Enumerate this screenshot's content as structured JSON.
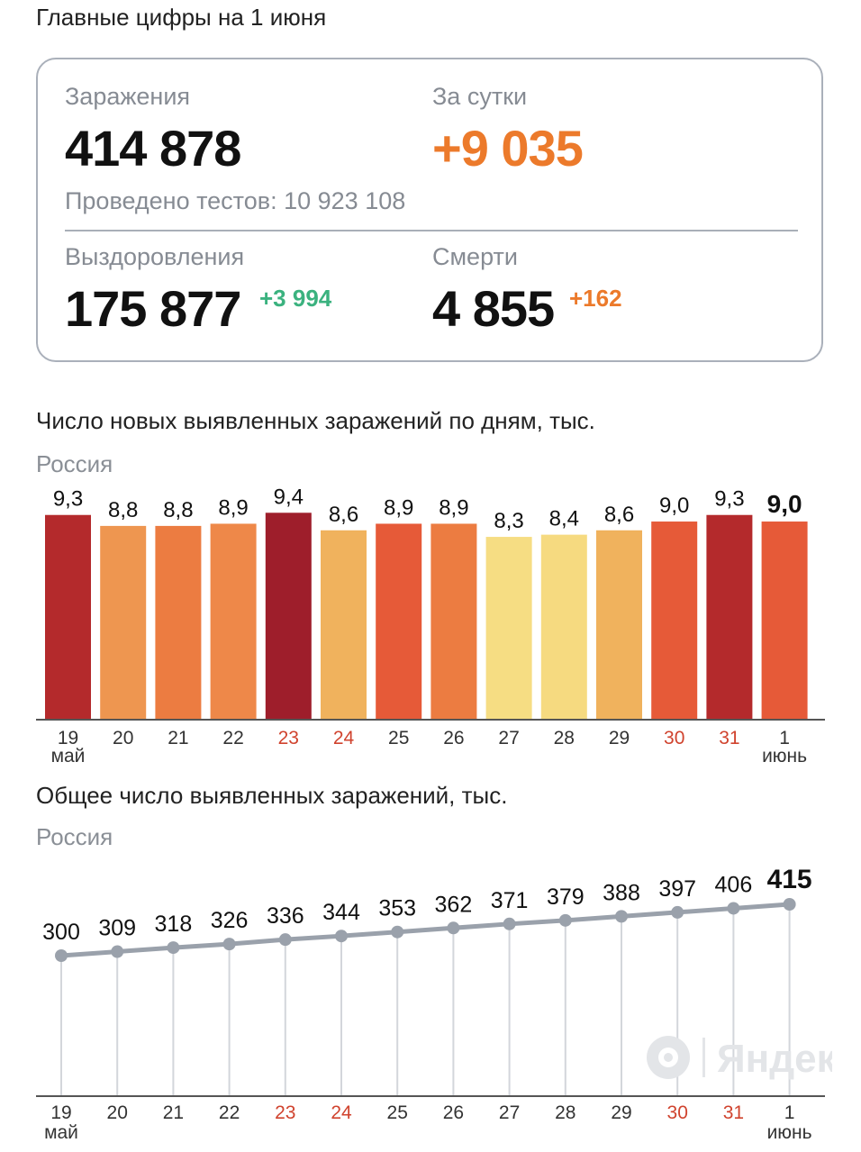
{
  "header": {
    "title": "Главные цифры на 1 июня"
  },
  "summary": {
    "infections_label": "Заражения",
    "infections_value": "414 878",
    "daily_label": "За сутки",
    "daily_value": "+9 035",
    "tests_text": "Проведено тестов: 10 923 108",
    "recoveries_label": "Выздоровления",
    "recoveries_value": "175 877",
    "recoveries_delta": "+3 994",
    "deaths_label": "Смерти",
    "deaths_value": "4 855",
    "deaths_delta": "+162"
  },
  "colors": {
    "green": "#3bb27f",
    "orange": "#ec7a2b",
    "weekend": "#d0432e",
    "line": "#9aa1ab"
  },
  "daily_chart": {
    "title": "Число новых выявленных заражений по дням, тыс.",
    "region": "Россия"
  },
  "total_chart": {
    "title": "Общее число выявленных заражений, тыс.",
    "region": "Россия"
  },
  "watermark": {
    "text": "Яндекс",
    "icon": "yandex-logo-icon"
  },
  "chart_data": [
    {
      "type": "bar",
      "title": "Число новых выявленных заражений по дням, тыс.",
      "subtitle": "Россия",
      "categories": [
        "19",
        "20",
        "21",
        "22",
        "23",
        "24",
        "25",
        "26",
        "27",
        "28",
        "29",
        "30",
        "31",
        "1"
      ],
      "month_labels": {
        "0": "май",
        "13": "июнь"
      },
      "weekend_indices": [
        4,
        5,
        11,
        12
      ],
      "values": [
        9.3,
        8.8,
        8.8,
        8.9,
        9.4,
        8.6,
        8.9,
        8.9,
        8.3,
        8.4,
        8.6,
        9.0,
        9.3,
        9.0
      ],
      "value_labels": [
        "9,3",
        "8,8",
        "8,8",
        "8,9",
        "9,4",
        "8,6",
        "8,9",
        "8,9",
        "8,3",
        "8,4",
        "8,6",
        "9,0",
        "9,3",
        "9,0"
      ],
      "bar_colors": [
        "#b42a2c",
        "#ee9650",
        "#ec7c41",
        "#ee8849",
        "#9e1e2b",
        "#f0b25d",
        "#e65a38",
        "#ec7c41",
        "#f6dd83",
        "#f6da80",
        "#f0b25d",
        "#e65a38",
        "#b42a2c",
        "#e65a38"
      ],
      "highlight_index": 13,
      "ylim": [
        0,
        9.7
      ],
      "xlabel": "",
      "ylabel": ""
    },
    {
      "type": "line",
      "title": "Общее число выявленных заражений, тыс.",
      "subtitle": "Россия",
      "categories": [
        "19",
        "20",
        "21",
        "22",
        "23",
        "24",
        "25",
        "26",
        "27",
        "28",
        "29",
        "30",
        "31",
        "1"
      ],
      "month_labels": {
        "0": "май",
        "13": "июнь"
      },
      "weekend_indices": [
        4,
        5,
        11,
        12
      ],
      "values": [
        300,
        309,
        318,
        326,
        336,
        344,
        353,
        362,
        371,
        379,
        388,
        397,
        406,
        415
      ],
      "value_labels": [
        "300",
        "309",
        "318",
        "326",
        "336",
        "344",
        "353",
        "362",
        "371",
        "379",
        "388",
        "397",
        "406",
        "415"
      ],
      "highlight_index": 13,
      "xlabel": "",
      "ylabel": ""
    }
  ]
}
